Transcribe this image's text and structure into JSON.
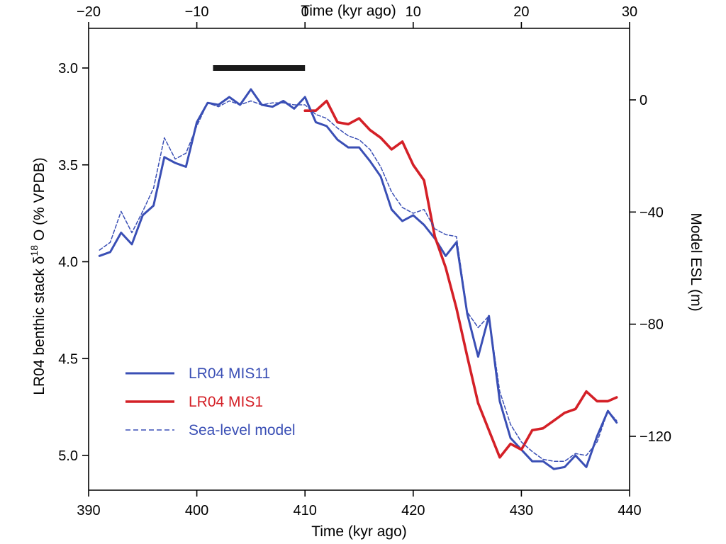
{
  "chart_data": {
    "type": "line",
    "bottom_axis": {
      "label": "Time (kyr ago)",
      "range": [
        390,
        440
      ],
      "ticks": [
        390,
        400,
        410,
        420,
        430,
        440
      ]
    },
    "top_axis": {
      "label": "Time (kyr ago)",
      "range": [
        -20,
        30
      ],
      "ticks": [
        -20,
        -10,
        0,
        10,
        20,
        30
      ]
    },
    "left_axis": {
      "label_prefix": "LR04 benthic stack δ",
      "label_sup": "18",
      "label_suffix": " O (% VPDB)",
      "range": [
        3.0,
        5.0
      ],
      "reversed": true,
      "ticks": [
        3.0,
        3.5,
        4.0,
        4.5,
        5.0
      ],
      "tick_labels": [
        "3.0",
        "3.5",
        "4.0",
        "4.5",
        "5.0"
      ]
    },
    "right_axis": {
      "label": "Model ESL (m)",
      "range": [
        0,
        -120
      ],
      "ticks": [
        0,
        -40,
        -80,
        -120
      ],
      "tick_labels": [
        "0",
        "−40",
        "−80",
        "−120"
      ]
    },
    "black_bar": {
      "x_start": 401.5,
      "x_end": 410,
      "y": 3.0,
      "color": "#1a1a1a"
    },
    "legend": {
      "position": "lower-left",
      "entries": [
        {
          "label": "LR04 MIS11",
          "color": "#3a4fb5",
          "style": "solid"
        },
        {
          "label": "LR04 MIS1",
          "color": "#d42027",
          "style": "solid"
        },
        {
          "label": "Sea-level model",
          "color": "#3a4fb5",
          "style": "dashed"
        }
      ]
    },
    "series": [
      {
        "name": "LR04 MIS11",
        "color": "#3a4fb5",
        "style": "solid",
        "x": [
          391,
          392,
          393,
          394,
          395,
          396,
          397,
          398,
          399,
          400,
          401,
          402,
          403,
          404,
          405,
          406,
          407,
          408,
          409,
          410,
          411,
          412,
          413,
          414,
          415,
          416,
          417,
          418,
          419,
          420,
          421,
          422,
          423,
          424,
          425,
          426,
          427,
          428,
          429,
          430,
          431,
          432,
          433,
          434,
          435,
          436,
          437,
          438,
          438.8
        ],
        "values": [
          3.97,
          3.95,
          3.85,
          3.91,
          3.76,
          3.71,
          3.46,
          3.49,
          3.51,
          3.28,
          3.18,
          3.19,
          3.15,
          3.19,
          3.11,
          3.19,
          3.2,
          3.17,
          3.21,
          3.15,
          3.28,
          3.3,
          3.37,
          3.41,
          3.41,
          3.48,
          3.56,
          3.73,
          3.79,
          3.76,
          3.81,
          3.88,
          3.97,
          3.9,
          4.27,
          4.49,
          4.28,
          4.72,
          4.91,
          4.97,
          5.03,
          5.03,
          5.07,
          5.06,
          5.0,
          5.06,
          4.9,
          4.77,
          4.83
        ]
      },
      {
        "name": "LR04 MIS1",
        "color": "#d42027",
        "style": "solid",
        "x": [
          410,
          411,
          412,
          413,
          414,
          415,
          416,
          417,
          418,
          419,
          420,
          421,
          422,
          423,
          424,
          425,
          426,
          427,
          428,
          429,
          430,
          431,
          432,
          433,
          434,
          435,
          436,
          437,
          438,
          438.8
        ],
        "values": [
          3.22,
          3.22,
          3.17,
          3.28,
          3.29,
          3.26,
          3.32,
          3.36,
          3.42,
          3.38,
          3.5,
          3.58,
          3.87,
          4.03,
          4.24,
          4.49,
          4.73,
          4.87,
          5.01,
          4.94,
          4.97,
          4.87,
          4.86,
          4.82,
          4.78,
          4.76,
          4.67,
          4.72,
          4.72,
          4.7
        ]
      },
      {
        "name": "Sea-level model",
        "color": "#3a4fb5",
        "style": "dashed",
        "x": [
          391,
          392,
          393,
          394,
          395,
          396,
          397,
          398,
          399,
          400,
          401,
          402,
          403,
          404,
          405,
          406,
          407,
          408,
          409,
          410,
          411,
          412,
          413,
          414,
          415,
          416,
          417,
          418,
          419,
          420,
          421,
          422,
          423,
          424,
          425,
          426,
          427,
          428,
          429,
          430,
          431,
          432,
          433,
          434,
          435,
          436,
          437,
          438,
          438.8
        ],
        "values": [
          3.94,
          3.9,
          3.74,
          3.85,
          3.74,
          3.62,
          3.36,
          3.47,
          3.44,
          3.3,
          3.18,
          3.2,
          3.17,
          3.19,
          3.17,
          3.19,
          3.18,
          3.18,
          3.19,
          3.19,
          3.24,
          3.26,
          3.31,
          3.35,
          3.37,
          3.42,
          3.51,
          3.64,
          3.72,
          3.75,
          3.73,
          3.83,
          3.86,
          3.87,
          4.26,
          4.34,
          4.28,
          4.67,
          4.84,
          4.93,
          4.98,
          5.02,
          5.03,
          5.03,
          4.99,
          5.0,
          4.93,
          4.77,
          4.82
        ]
      }
    ]
  }
}
